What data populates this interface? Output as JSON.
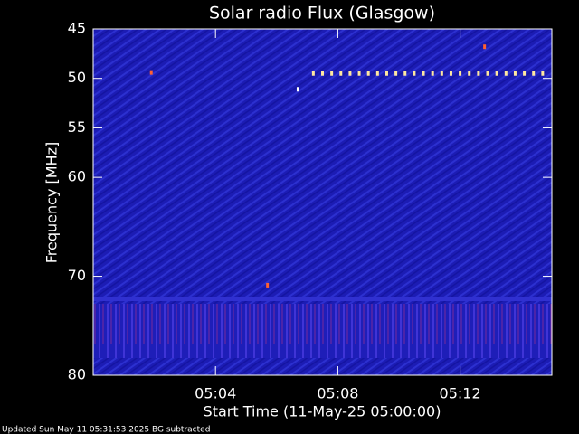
{
  "chart_data": {
    "type": "spectrogram",
    "title": "Solar radio Flux (Glasgow)",
    "x_label": "Start Time (11-May-25 05:00:00)",
    "y_label": "Frequency [MHz]",
    "footer": "Updated Sun May 11 05:31:53 2025   BG subtracted",
    "xlim": [
      0,
      15
    ],
    "xticks": [
      {
        "value": 4,
        "label": "05:04"
      },
      {
        "value": 8,
        "label": "05:08"
      },
      {
        "value": 12,
        "label": "05:12"
      }
    ],
    "ylim": [
      80,
      45
    ],
    "yticks": [
      45,
      50,
      55,
      60,
      70,
      80
    ],
    "series": [
      {
        "color": "#ffe8a0",
        "x": [
          7.2,
          7.5,
          7.8,
          8.1,
          8.4,
          8.7,
          9.0,
          9.3,
          9.6,
          9.9,
          10.2,
          10.5,
          10.8,
          11.1,
          11.4,
          11.7,
          12.0,
          12.3,
          12.6,
          12.9,
          13.2,
          13.5,
          13.8,
          14.1,
          14.4,
          14.7
        ],
        "values": [
          49.5,
          49.5,
          49.5,
          49.5,
          49.5,
          49.5,
          49.5,
          49.5,
          49.5,
          49.5,
          49.5,
          49.5,
          49.5,
          49.5,
          49.5,
          49.5,
          49.5,
          49.5,
          49.5,
          49.5,
          49.5,
          49.5,
          49.5,
          49.5,
          49.5,
          49.5
        ]
      },
      {
        "color": "#ffffff",
        "x": [
          6.7
        ],
        "values": [
          51.1
        ]
      },
      {
        "color": "#ff6030",
        "x": [
          1.9,
          5.7,
          12.8
        ],
        "values": [
          49.4,
          70.9,
          46.8
        ]
      }
    ]
  }
}
